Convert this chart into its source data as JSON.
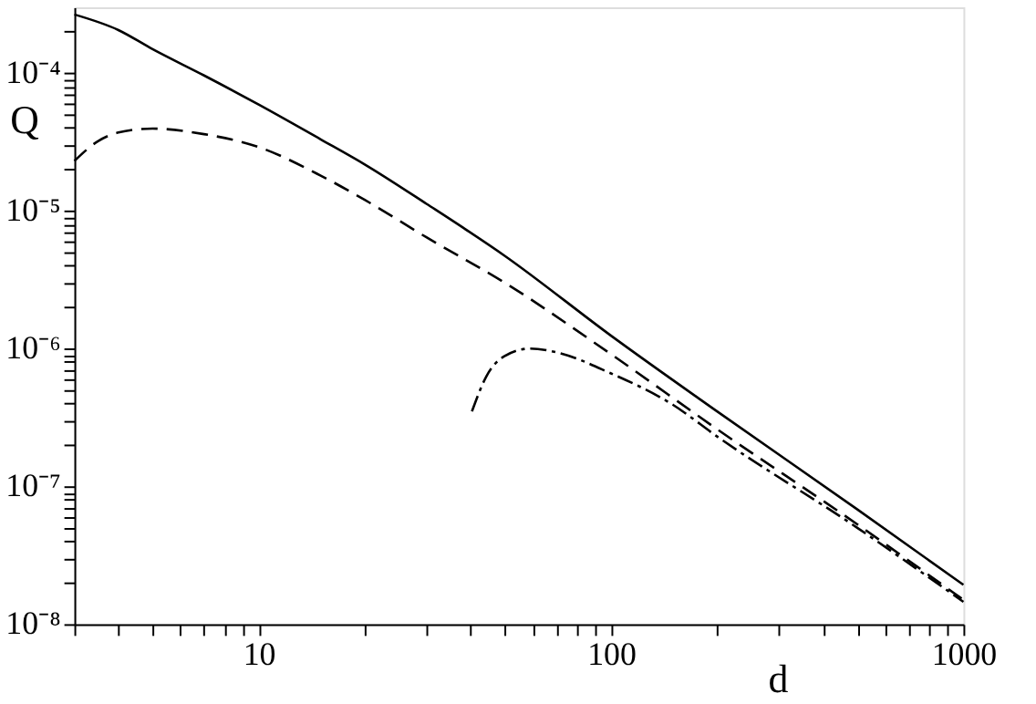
{
  "chart_data": {
    "type": "line",
    "xlabel": "d",
    "ylabel": "Q",
    "log": "xy",
    "grid": false,
    "legend": false,
    "xlim": [
      3,
      1000
    ],
    "ylim": [
      1e-08,
      0.0003
    ],
    "xticks": [
      {
        "value": 3,
        "label": null
      },
      {
        "value": 4,
        "label": null
      },
      {
        "value": 5,
        "label": null
      },
      {
        "value": 6,
        "label": null
      },
      {
        "value": 7,
        "label": null
      },
      {
        "value": 8,
        "label": null
      },
      {
        "value": 9,
        "label": null
      },
      10,
      {
        "value": 20,
        "label": null
      },
      {
        "value": 30,
        "label": null
      },
      {
        "value": 40,
        "label": null
      },
      {
        "value": 50,
        "label": null
      },
      {
        "value": 60,
        "label": null
      },
      {
        "value": 70,
        "label": null
      },
      {
        "value": 80,
        "label": null
      },
      {
        "value": 90,
        "label": null
      },
      100,
      {
        "value": 200,
        "label": null
      },
      {
        "value": 300,
        "label": null
      },
      {
        "value": 400,
        "label": null
      },
      {
        "value": 500,
        "label": null
      },
      {
        "value": 600,
        "label": null
      },
      {
        "value": 700,
        "label": null
      },
      {
        "value": 800,
        "label": null
      },
      {
        "value": 900,
        "label": null
      },
      1000
    ],
    "yticks": [
      {
        "value": 1e-08,
        "label": "10⁻⁸"
      },
      {
        "value": 2e-08,
        "label": null
      },
      {
        "value": 3e-08,
        "label": null
      },
      {
        "value": 4e-08,
        "label": null
      },
      {
        "value": 5e-08,
        "label": null
      },
      {
        "value": 6e-08,
        "label": null
      },
      {
        "value": 7e-08,
        "label": null
      },
      {
        "value": 8e-08,
        "label": null
      },
      {
        "value": 9e-08,
        "label": null
      },
      {
        "value": 1e-07,
        "label": "10⁻⁷"
      },
      {
        "value": 2e-07,
        "label": null
      },
      {
        "value": 3e-07,
        "label": null
      },
      {
        "value": 4e-07,
        "label": null
      },
      {
        "value": 5e-07,
        "label": null
      },
      {
        "value": 6e-07,
        "label": null
      },
      {
        "value": 7e-07,
        "label": null
      },
      {
        "value": 8e-07,
        "label": null
      },
      {
        "value": 9e-07,
        "label": null
      },
      {
        "value": 1e-06,
        "label": "10⁻⁶"
      },
      {
        "value": 2e-06,
        "label": null
      },
      {
        "value": 3e-06,
        "label": null
      },
      {
        "value": 4e-06,
        "label": null
      },
      {
        "value": 5e-06,
        "label": null
      },
      {
        "value": 6e-06,
        "label": null
      },
      {
        "value": 7e-06,
        "label": null
      },
      {
        "value": 8e-06,
        "label": null
      },
      {
        "value": 9e-06,
        "label": null
      },
      {
        "value": 1e-05,
        "label": "10⁻⁵"
      },
      {
        "value": 2e-05,
        "label": null
      },
      {
        "value": 3e-05,
        "label": null
      },
      {
        "value": 4e-05,
        "label": null
      },
      {
        "value": 5e-05,
        "label": null
      },
      {
        "value": 6e-05,
        "label": null
      },
      {
        "value": 7e-05,
        "label": null
      },
      {
        "value": 8e-05,
        "label": null
      },
      {
        "value": 9e-05,
        "label": null
      },
      {
        "value": 0.0001,
        "label": "10⁻⁴"
      },
      {
        "value": 0.0002,
        "label": null
      }
    ],
    "series": [
      {
        "color": "#000000",
        "line_style": "solid",
        "x": [
          3,
          4,
          5,
          7,
          10,
          15,
          20,
          30,
          50,
          100,
          200,
          500,
          1000
        ],
        "values": [
          0.000266,
          0.000205,
          0.000149,
          9.6e-05,
          5.9e-05,
          3.3e-05,
          2.17e-05,
          1.12e-05,
          4.7e-06,
          1.24e-06,
          3.5e-07,
          6.8e-08,
          1.93e-08
        ]
      },
      {
        "color": "#000000",
        "line_style": "dashed",
        "x": [
          3,
          3.5,
          4,
          5,
          7,
          10,
          15,
          20,
          30,
          50,
          100,
          200,
          500,
          1000
        ],
        "values": [
          2.3e-05,
          3.2e-05,
          3.7e-05,
          3.95e-05,
          3.6e-05,
          2.9e-05,
          1.8e-05,
          1.2e-05,
          6.4e-06,
          3e-06,
          9.1e-07,
          2.6e-07,
          5.3e-08,
          1.5e-08
        ]
      },
      {
        "color": "#000000",
        "line_style": "dashdot",
        "x": [
          40.3,
          44.3,
          49.8,
          59,
          70,
          100,
          150,
          200,
          500,
          1000
        ],
        "values": [
          3.5e-07,
          6.3e-07,
          8.8e-07,
          1e-06,
          9.4e-07,
          6.6e-07,
          3.9e-07,
          2.3e-07,
          5e-08,
          1.45e-08
        ]
      }
    ]
  }
}
